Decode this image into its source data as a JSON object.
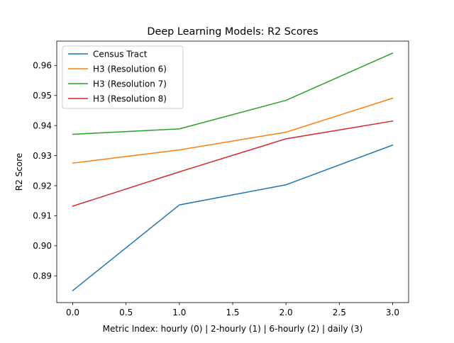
{
  "chart_data": {
    "type": "line",
    "title": "Deep Learning Models: R2 Scores",
    "xlabel": "Metric Index: hourly (0) | 2-hourly (1) | 6-hourly (2) | daily (3)",
    "ylabel": "R2 Score",
    "x": [
      0,
      1,
      2,
      3
    ],
    "xlim": [
      -0.15,
      3.15
    ],
    "ylim": [
      0.8811,
      0.9681
    ],
    "xticks": [
      0.0,
      0.5,
      1.0,
      1.5,
      2.0,
      2.5,
      3.0
    ],
    "xtick_labels": [
      "0.0",
      "0.5",
      "1.0",
      "1.5",
      "2.0",
      "2.5",
      "3.0"
    ],
    "yticks": [
      0.89,
      0.9,
      0.91,
      0.92,
      0.93,
      0.94,
      0.95,
      0.96
    ],
    "ytick_labels": [
      "0.89",
      "0.90",
      "0.91",
      "0.92",
      "0.93",
      "0.94",
      "0.95",
      "0.96"
    ],
    "grid": false,
    "legend_position": "top-left",
    "series": [
      {
        "name": "Census Tract",
        "color": "#1f77b4",
        "values": [
          0.8851,
          0.9136,
          0.9203,
          0.9335
        ]
      },
      {
        "name": "H3 (Resolution 6)",
        "color": "#ff7f0e",
        "values": [
          0.9275,
          0.9319,
          0.9378,
          0.9491
        ]
      },
      {
        "name": "H3 (Resolution 7)",
        "color": "#2ca02c",
        "values": [
          0.9371,
          0.9389,
          0.9484,
          0.9641
        ]
      },
      {
        "name": "H3 (Resolution 8)",
        "color": "#d62728",
        "values": [
          0.9132,
          0.9246,
          0.9356,
          0.9415
        ]
      }
    ]
  }
}
